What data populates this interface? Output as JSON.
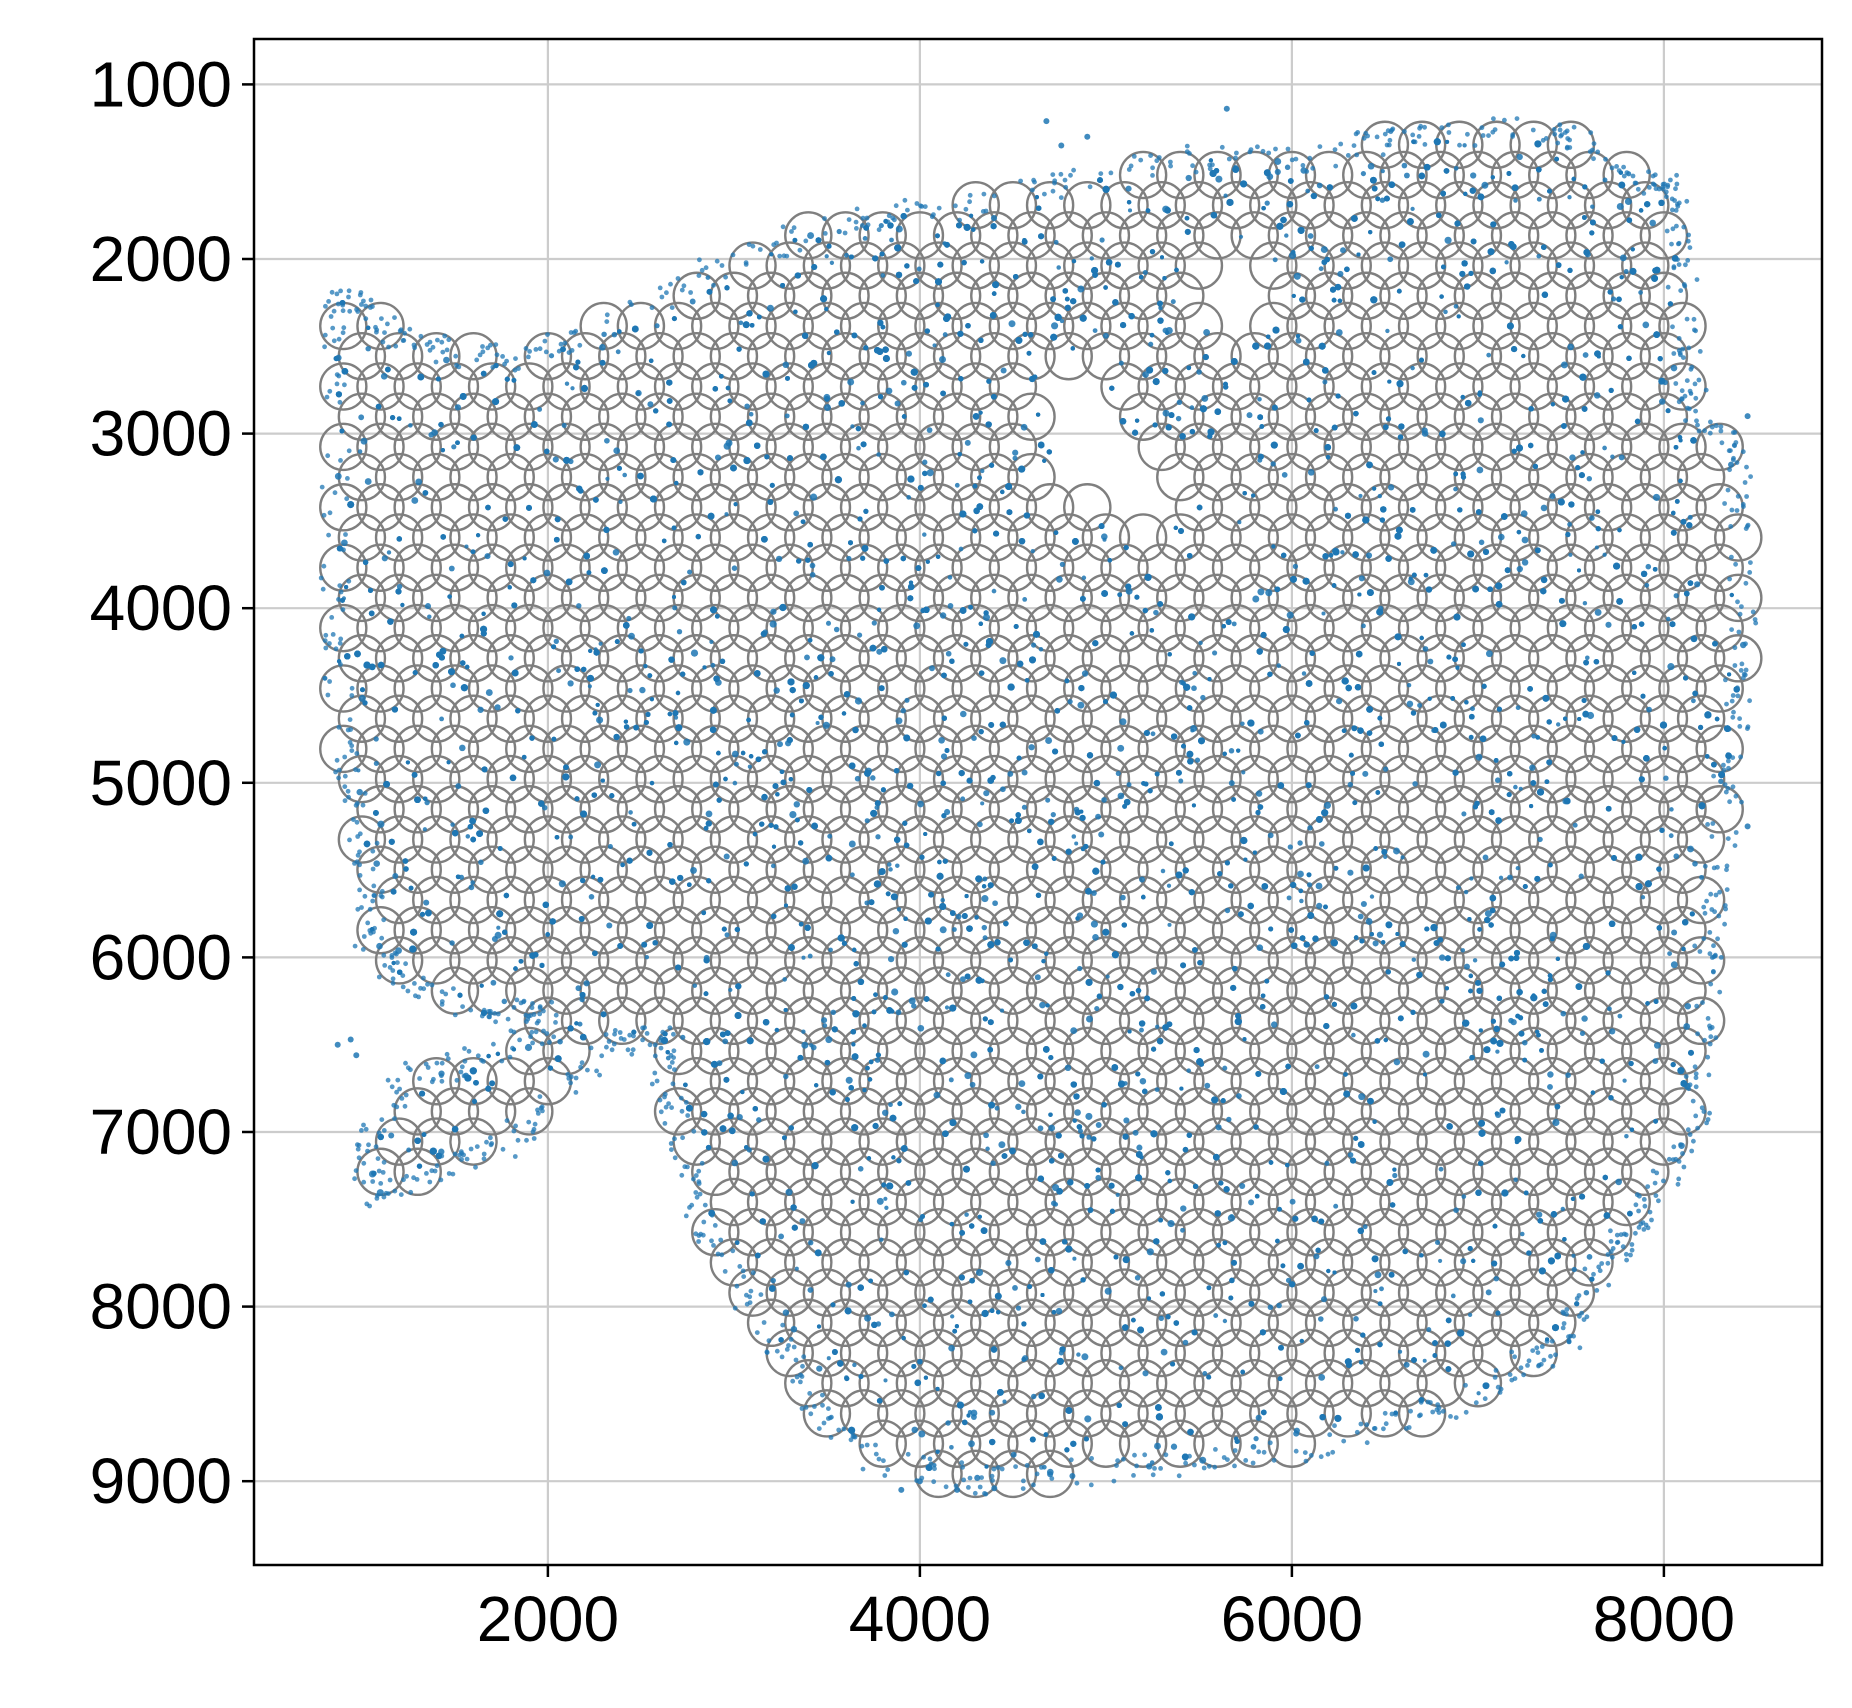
{
  "chart_data": {
    "type": "scatter",
    "title": "",
    "xlabel": "",
    "ylabel": "",
    "xlim": [
      420,
      8850
    ],
    "ylim": [
      9480,
      740
    ],
    "y_inverted": true,
    "grid": true,
    "legend": "none",
    "x_ticks": [
      2000,
      4000,
      6000,
      8000
    ],
    "x_tick_labels": [
      "2000",
      "4000",
      "6000",
      "8000"
    ],
    "y_ticks": [
      1000,
      2000,
      3000,
      4000,
      5000,
      6000,
      7000,
      8000,
      9000
    ],
    "y_tick_labels": [
      "1000",
      "2000",
      "3000",
      "4000",
      "5000",
      "6000",
      "7000",
      "8000",
      "9000"
    ],
    "colors": {
      "cells": "#1f77b4",
      "spots": "#7f7f7f",
      "grid": "#cccccc",
      "axis": "#000000"
    },
    "series": [
      {
        "style": "open gray circles",
        "spacing_x": 200,
        "spacing_y": 173,
        "outline": [
          [
            860,
            2230
          ],
          [
            1050,
            2230
          ],
          [
            1200,
            2450
          ],
          [
            1500,
            2550
          ],
          [
            1900,
            2560
          ],
          [
            2400,
            2320
          ],
          [
            2900,
            2060
          ],
          [
            3400,
            1850
          ],
          [
            3900,
            1740
          ],
          [
            4600,
            1620
          ],
          [
            5100,
            1510
          ],
          [
            5600,
            1400
          ],
          [
            6100,
            1430
          ],
          [
            6500,
            1320
          ],
          [
            7000,
            1270
          ],
          [
            7450,
            1280
          ],
          [
            7700,
            1450
          ],
          [
            8000,
            1580
          ],
          [
            8050,
            1700
          ],
          [
            8100,
            2100
          ],
          [
            8130,
            2600
          ],
          [
            8170,
            2950
          ],
          [
            8380,
            3050
          ],
          [
            8400,
            3500
          ],
          [
            8430,
            4200
          ],
          [
            8380,
            4650
          ],
          [
            8330,
            5100
          ],
          [
            8270,
            5700
          ],
          [
            8230,
            6050
          ],
          [
            8200,
            6600
          ],
          [
            8160,
            7000
          ],
          [
            7950,
            7350
          ],
          [
            7800,
            7600
          ],
          [
            7650,
            7800
          ],
          [
            7500,
            8150
          ],
          [
            7300,
            8300
          ],
          [
            7000,
            8500
          ],
          [
            6600,
            8650
          ],
          [
            6100,
            8800
          ],
          [
            5500,
            8900
          ],
          [
            4800,
            8950
          ],
          [
            4300,
            9000
          ],
          [
            3800,
            8900
          ],
          [
            3500,
            8650
          ],
          [
            3300,
            8300
          ],
          [
            3050,
            7900
          ],
          [
            2850,
            7500
          ],
          [
            2750,
            7200
          ],
          [
            2650,
            6780
          ],
          [
            2600,
            6480
          ],
          [
            2300,
            6480
          ],
          [
            2000,
            6850
          ],
          [
            1700,
            7120
          ],
          [
            1400,
            7200
          ],
          [
            1080,
            7380
          ],
          [
            1000,
            7050
          ],
          [
            1250,
            6700
          ],
          [
            1600,
            6600
          ],
          [
            2000,
            6400
          ],
          [
            1900,
            6280
          ],
          [
            1600,
            6330
          ],
          [
            1250,
            6150
          ],
          [
            1040,
            5900
          ],
          [
            1040,
            5600
          ],
          [
            950,
            5100
          ],
          [
            880,
            4700
          ],
          [
            860,
            4000
          ],
          [
            860,
            3200
          ]
        ],
        "holes": [
          [
            [
              4680,
              2650
            ],
            [
              4880,
              2680
            ],
            [
              5150,
              3000
            ],
            [
              5430,
              3300
            ],
            [
              5350,
              3560
            ],
            [
              5050,
              3450
            ],
            [
              4700,
              3380
            ],
            [
              4700,
              3000
            ]
          ],
          [
            [
              5600,
              1950
            ],
            [
              5800,
              1900
            ],
            [
              5880,
              2200
            ],
            [
              5780,
              2560
            ],
            [
              5620,
              2520
            ],
            [
              5500,
              2250
            ]
          ]
        ]
      },
      {
        "style": "small blue dots",
        "density": 3,
        "bands": [
          [
            [
              2400,
              4600
            ],
            [
              5300,
              6300
            ]
          ],
          [
            [
              4500,
              5200
            ],
            [
              6800,
              5950
            ]
          ],
          [
            [
              3300,
              6300
            ],
            [
              5400,
              7300
            ]
          ],
          [
            [
              5800,
              5500
            ],
            [
              7300,
              6400
            ]
          ],
          [
            [
              3700,
              5700
            ],
            [
              4300,
              8100
            ]
          ],
          [
            [
              3500,
              1900
            ],
            [
              5200,
              2100
            ]
          ],
          [
            [
              5700,
              1600
            ],
            [
              7800,
              1700
            ]
          ],
          [
            [
              4900,
              2100
            ],
            [
              5500,
              2900
            ]
          ]
        ],
        "outliers": [
          [
            4680,
            1210
          ],
          [
            4760,
            1350
          ],
          [
            4900,
            1300
          ],
          [
            5650,
            1140
          ],
          [
            870,
            6500
          ],
          [
            970,
            6560
          ],
          [
            940,
            6470
          ],
          [
            8450,
            2900
          ],
          [
            8450,
            5250
          ],
          [
            3900,
            9050
          ],
          [
            4000,
            9000
          ],
          [
            4200,
            9050
          ],
          [
            4400,
            9040
          ],
          [
            4700,
            8960
          ],
          [
            4820,
            8970
          ]
        ]
      }
    ]
  }
}
